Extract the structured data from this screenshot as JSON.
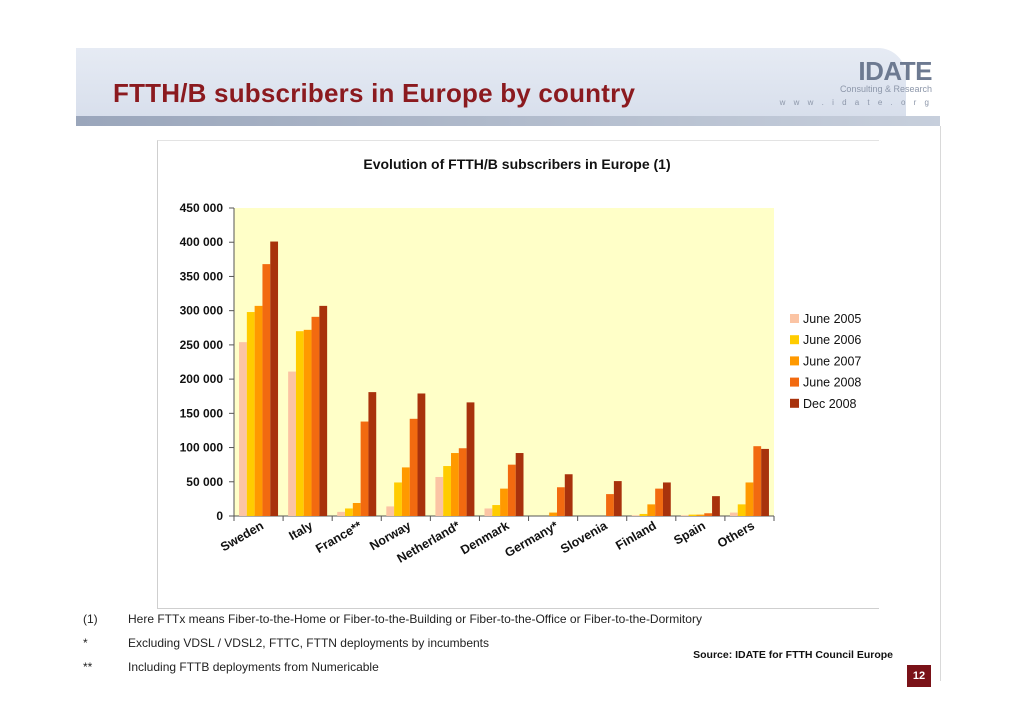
{
  "header": {
    "title": "FTTH/B subscribers in Europe by country",
    "logo": {
      "name": "IDATE",
      "subtitle": "Consulting & Research",
      "url": "w w w . i d a t e . o r g"
    }
  },
  "chart_data": {
    "type": "bar",
    "title": "Evolution of FTTH/B subscribers in Europe (1)",
    "xlabel": "",
    "ylabel": "",
    "ylim": [
      0,
      450000
    ],
    "yticks": [
      "0",
      "50 000",
      "100 000",
      "150 000",
      "200 000",
      "250 000",
      "300 000",
      "350 000",
      "400 000",
      "450 000"
    ],
    "grid": false,
    "plot_background": "#ffffc8",
    "legend_position": "right",
    "categories": [
      "Sweden",
      "Italy",
      "France**",
      "Norway",
      "Netherland*",
      "Denmark",
      "Germany*",
      "Slovenia",
      "Finland",
      "Spain",
      "Others"
    ],
    "series": [
      {
        "name": "June 2005",
        "color": "#fbc4a4",
        "values": [
          254000,
          211000,
          6000,
          14000,
          57000,
          11000,
          0,
          0,
          1000,
          1000,
          5000
        ]
      },
      {
        "name": "June 2006",
        "color": "#ffcc00",
        "values": [
          298000,
          270000,
          11000,
          49000,
          73000,
          16000,
          0,
          0,
          3000,
          2000,
          17000
        ]
      },
      {
        "name": "June 2007",
        "color": "#ff9900",
        "values": [
          307000,
          272000,
          19000,
          71000,
          92000,
          40000,
          5000,
          0,
          17000,
          2000,
          49000
        ]
      },
      {
        "name": "June 2008",
        "color": "#f26a10",
        "values": [
          368000,
          291000,
          138000,
          142000,
          99000,
          75000,
          42000,
          32000,
          40000,
          4000,
          102000
        ]
      },
      {
        "name": "Dec 2008",
        "color": "#a8320c",
        "values": [
          401000,
          307000,
          181000,
          179000,
          166000,
          92000,
          61000,
          51000,
          49000,
          29000,
          98000
        ]
      }
    ]
  },
  "footnotes": [
    {
      "mark": "(1)",
      "text": "Here FTTx means Fiber-to-the-Home or Fiber-to-the-Building or Fiber-to-the-Office or Fiber-to-the-Dormitory"
    },
    {
      "mark": "*",
      "text": "Excluding VDSL / VDSL2, FTTC, FTTN deployments by incumbents"
    },
    {
      "mark": "**",
      "text": "Including FTTB deployments from Numericable"
    }
  ],
  "source": "Source: IDATE for FTTH Council Europe",
  "page_number": "12"
}
